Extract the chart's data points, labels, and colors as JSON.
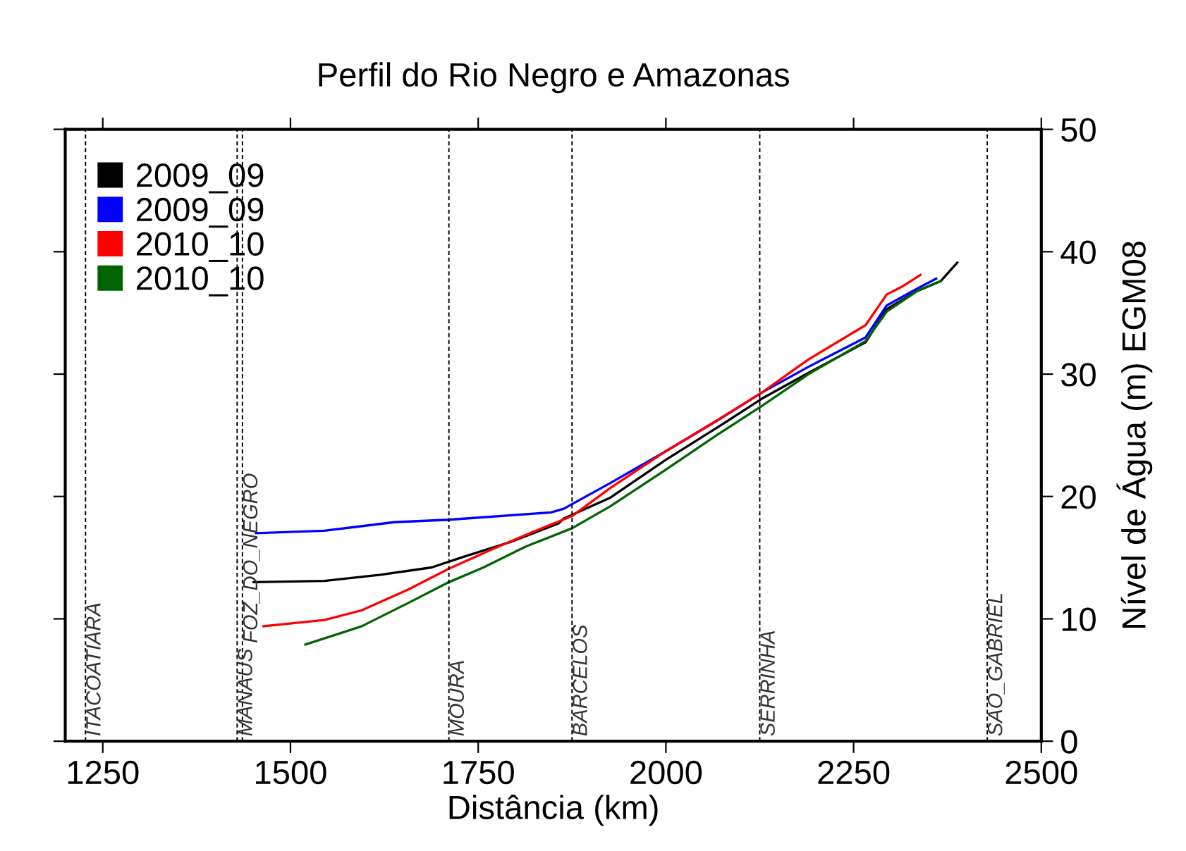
{
  "chart_data": {
    "type": "line",
    "title": "Perfil do Rio Negro e Amazonas",
    "xlabel": "Distância (km)",
    "ylabel": "Nível de Água (m) EGM08",
    "xlim": [
      1200,
      2500
    ],
    "xticks": [
      1250,
      1500,
      1750,
      2000,
      2250,
      2500
    ],
    "ylim": [
      0,
      50
    ],
    "yticks": [
      0,
      10,
      20,
      30,
      40,
      50
    ],
    "grid": false,
    "legend": "top left",
    "line_style": "solid",
    "marker": "none",
    "series": [
      {
        "name": "2009_09",
        "color": "#000000",
        "x": [
          1451,
          1545,
          1620,
          1688,
          1732,
          1794,
          1857,
          1864,
          1926,
          2000,
          2065,
          2128,
          2190,
          2266,
          2294,
          2335,
          2366,
          2388
        ],
        "values": [
          13.0,
          13.1,
          13.6,
          14.2,
          15.1,
          16.3,
          17.8,
          18.2,
          19.9,
          23.0,
          25.5,
          28.0,
          30.1,
          32.6,
          35.3,
          36.8,
          37.6,
          39.1
        ]
      },
      {
        "name": "2009_09",
        "color": "#0000ff",
        "x": [
          1454,
          1545,
          1638,
          1711,
          1847,
          1864,
          1926,
          2000,
          2071,
          2128,
          2190,
          2266,
          2294,
          2335,
          2360
        ],
        "values": [
          17.0,
          17.2,
          17.9,
          18.1,
          18.7,
          19.0,
          21.1,
          23.7,
          26.3,
          28.5,
          30.6,
          33.0,
          35.6,
          37.0,
          37.8
        ]
      },
      {
        "name": "2010_10",
        "color": "#ff0000",
        "x": [
          1464,
          1545,
          1595,
          1657,
          1711,
          1769,
          1819,
          1875,
          1926,
          2000,
          2065,
          2128,
          2190,
          2266,
          2294,
          2316,
          2339
        ],
        "values": [
          9.4,
          9.9,
          10.7,
          12.4,
          14.1,
          15.7,
          17.0,
          18.4,
          20.7,
          23.7,
          26.1,
          28.5,
          31.2,
          34.0,
          36.5,
          37.2,
          38.1
        ]
      },
      {
        "name": "2010_10",
        "color": "#006400",
        "x": [
          1520,
          1595,
          1657,
          1711,
          1757,
          1813,
          1875,
          1926,
          2000,
          2065,
          2128,
          2190,
          2266,
          2294,
          2335,
          2366
        ],
        "values": [
          7.9,
          9.4,
          11.3,
          13.0,
          14.2,
          15.9,
          17.4,
          19.2,
          22.2,
          24.9,
          27.4,
          30.0,
          32.7,
          35.1,
          36.8,
          37.6
        ]
      }
    ],
    "ref_lines": [
      {
        "axis": "x",
        "value": 1227,
        "label": "ITACOATIARA",
        "line_style": "dashed"
      },
      {
        "axis": "x",
        "value": 1429,
        "label": "MANAUS",
        "line_style": "dashed"
      },
      {
        "axis": "x",
        "value": 1436,
        "label": "FOZ_DO_NEGRO",
        "line_style": "dashed"
      },
      {
        "axis": "x",
        "value": 1711,
        "label": "MOURA",
        "line_style": "dashed"
      },
      {
        "axis": "x",
        "value": 1875,
        "label": "BARCELOS",
        "line_style": "dashed"
      },
      {
        "axis": "x",
        "value": 2125,
        "label": "SERRINHA",
        "line_style": "dashed"
      },
      {
        "axis": "x",
        "value": 2428,
        "label": "SAO_GABRIEL",
        "line_style": "dashed"
      }
    ]
  }
}
